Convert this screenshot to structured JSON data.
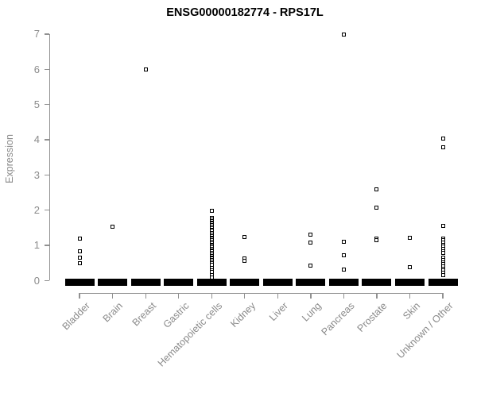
{
  "chart_data": {
    "type": "scatter",
    "subtype": "strip-plot",
    "title": "ENSG00000182774 - RPS17L",
    "xlabel": "",
    "ylabel": "Expression",
    "ylim": [
      0,
      7
    ],
    "yticks": [
      0,
      1,
      2,
      3,
      4,
      5,
      6,
      7
    ],
    "grid": false,
    "legend": false,
    "point_marker": "open-square",
    "colors": {
      "point": "#000000",
      "axis": "#919191",
      "tick_label": "#8a8a8a",
      "title": "#000000",
      "background": "#ffffff"
    },
    "categories": [
      "Bladder",
      "Brain",
      "Breast",
      "Gastric",
      "Hematopoietic cells",
      "Kidney",
      "Liver",
      "Lung",
      "Pancreas",
      "Prostate",
      "Skin",
      "Unknown / Other"
    ],
    "series": [
      {
        "category": "Bladder",
        "values": [
          1.19,
          0.84,
          0.66,
          0.5
        ],
        "zero_cluster": true
      },
      {
        "category": "Brain",
        "values": [
          1.53
        ],
        "zero_cluster": true
      },
      {
        "category": "Breast",
        "values": [
          6.0
        ],
        "zero_cluster": true
      },
      {
        "category": "Gastric",
        "values": [],
        "zero_cluster": true
      },
      {
        "category": "Hematopoietic cells",
        "values": [
          1.98,
          1.77,
          1.73,
          1.69,
          1.65,
          1.61,
          1.57,
          1.53,
          1.49,
          1.45,
          1.41,
          1.34,
          1.3,
          1.26,
          1.22,
          1.18,
          1.14,
          1.1,
          1.06,
          1.02,
          0.98,
          0.94,
          0.9,
          0.86,
          0.82,
          0.78,
          0.74,
          0.7,
          0.66,
          0.62,
          0.58,
          0.54,
          0.5,
          0.44,
          0.36,
          0.3,
          0.24,
          0.15,
          0.08
        ],
        "zero_cluster": true
      },
      {
        "category": "Kidney",
        "values": [
          1.23,
          0.63,
          0.57
        ],
        "zero_cluster": true
      },
      {
        "category": "Liver",
        "values": [],
        "zero_cluster": true
      },
      {
        "category": "Lung",
        "values": [
          1.3,
          1.08,
          0.42
        ],
        "zero_cluster": true
      },
      {
        "category": "Pancreas",
        "values": [
          6.98,
          1.11,
          0.71,
          0.32
        ],
        "zero_cluster": true
      },
      {
        "category": "Prostate",
        "values": [
          2.6,
          2.07,
          1.19,
          1.15
        ],
        "zero_cluster": true
      },
      {
        "category": "Skin",
        "values": [
          1.21,
          0.38
        ],
        "zero_cluster": true
      },
      {
        "category": "Unknown / Other",
        "values": [
          4.03,
          3.78,
          1.56,
          1.2,
          1.14,
          1.08,
          1.02,
          0.96,
          0.9,
          0.84,
          0.79,
          0.64,
          0.58,
          0.52,
          0.46,
          0.4,
          0.34,
          0.28,
          0.22,
          0.15
        ],
        "zero_cluster": true
      }
    ]
  }
}
